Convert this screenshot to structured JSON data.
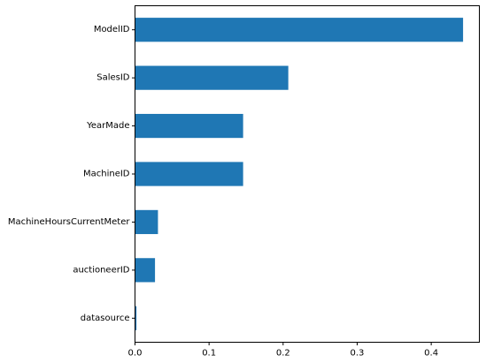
{
  "chart_data": {
    "type": "bar",
    "orientation": "horizontal",
    "title": "",
    "xlabel": "",
    "ylabel": "",
    "categories": [
      "ModelID",
      "SalesID",
      "YearMade",
      "MachineID",
      "MachineHoursCurrentMeter",
      "auctioneerID",
      "datasource"
    ],
    "values": [
      0.443,
      0.207,
      0.146,
      0.146,
      0.031,
      0.027,
      0.002
    ],
    "xlim": [
      0,
      0.465
    ],
    "xticks": [
      0.0,
      0.1,
      0.2,
      0.3,
      0.4
    ],
    "xtick_labels": [
      "0.0",
      "0.1",
      "0.2",
      "0.3",
      "0.4"
    ],
    "grid": false,
    "legend": "none",
    "bar_color": "#1f77b4"
  }
}
